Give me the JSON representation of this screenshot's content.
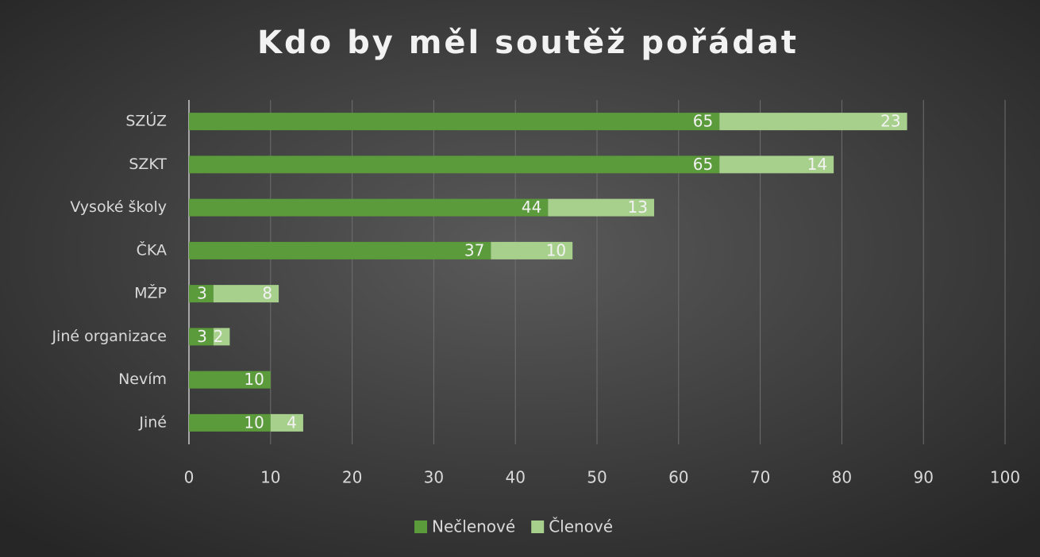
{
  "chart_data": {
    "type": "bar",
    "orientation": "horizontal",
    "stacked": true,
    "title": "Kdo by měl soutěž pořádat",
    "categories": [
      "SZÚZ",
      "SZKT",
      "Vysoké školy",
      "ČKA",
      "MŽP",
      "Jiné organizace",
      "Nevím",
      "Jiné"
    ],
    "series": [
      {
        "name": "Nečlenové",
        "color": "#5b9b3b",
        "values": [
          65,
          65,
          44,
          37,
          3,
          3,
          10,
          10
        ]
      },
      {
        "name": "Členové",
        "color": "#a8d08d",
        "values": [
          23,
          14,
          13,
          10,
          8,
          2,
          null,
          4
        ]
      }
    ],
    "xlim": [
      0,
      100
    ],
    "xticks": [
      0,
      10,
      20,
      30,
      40,
      50,
      60,
      70,
      80,
      90,
      100
    ],
    "grid": true,
    "legend": "bottom"
  }
}
